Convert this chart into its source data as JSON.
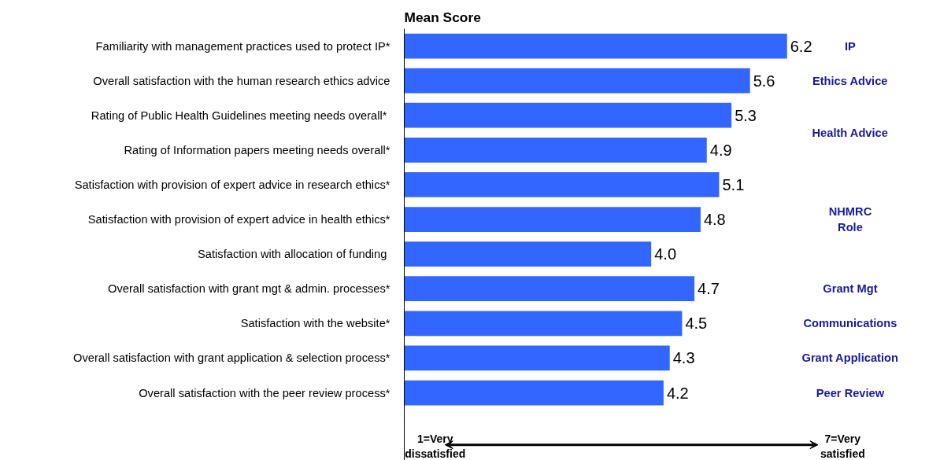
{
  "chart_data": {
    "type": "bar",
    "orientation": "horizontal",
    "title": "Mean Score",
    "categories": [
      "Familiarity with management practices used to protect IP*",
      "Overall satisfaction with the human research ethics advice",
      "Rating of Public Health Guidelines meeting  needs overall*",
      "Rating of Information papers meeting needs overall*",
      "Satisfaction with provision of expert advice in research ethics*",
      "Satisfaction with provision of expert advice in health ethics*",
      "Satisfaction with allocation of funding ",
      "Overall satisfaction with grant mgt & admin. processes*",
      "Satisfaction with the website*",
      "Overall satisfaction with grant application & selection process*",
      "Overall satisfaction with the peer review process*"
    ],
    "values": [
      6.2,
      5.6,
      5.3,
      4.9,
      5.1,
      4.8,
      4.0,
      4.7,
      4.5,
      4.3,
      4.2
    ],
    "value_labels": [
      "6.2",
      "5.6",
      "5.3",
      "4.9",
      "5.1",
      "4.8",
      "4.0",
      "4.7",
      "4.5",
      "4.3",
      "4.2"
    ],
    "color": "#3366ff",
    "grid": false,
    "annotations": [
      "IP",
      "Ethics Advice",
      "Health Advice",
      "NHMRC\nRole",
      "Grant Mgt",
      "Communications",
      "Grant Application",
      "Peer Review",
      "1=Very\ndissatisfied",
      "7=Very\nsatisfied"
    ]
  }
}
